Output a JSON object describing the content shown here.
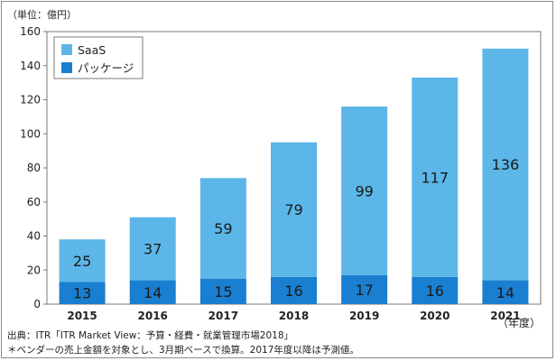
{
  "unit_label": "（単位：億円）",
  "x_unit_label": "（年度）",
  "source_note": "出典：ITR「ITR Market View：予算・経費・就業管理市場2018」",
  "remark_note": "＊ベンダーの売上金額を対象とし、3月期ベースで換算。2017年度以降は予測値。",
  "colors": {
    "saas": "#5cb6e8",
    "package": "#1a7fd0",
    "gridline": "#888888"
  },
  "chart_data": {
    "type": "bar",
    "stacked": true,
    "categories": [
      "2015",
      "2016",
      "2017",
      "2018",
      "2019",
      "2020",
      "2021"
    ],
    "series": [
      {
        "name": "パッケージ",
        "values": [
          13,
          14,
          15,
          16,
          17,
          16,
          14
        ]
      },
      {
        "name": "SaaS",
        "values": [
          25,
          37,
          59,
          79,
          99,
          117,
          136
        ]
      }
    ],
    "ylim": [
      0,
      160
    ],
    "yticks": [
      0,
      20,
      40,
      60,
      80,
      100,
      120,
      140,
      160
    ],
    "legend_order": [
      "SaaS",
      "パッケージ"
    ],
    "legend_position": "top-left",
    "grid": false
  }
}
